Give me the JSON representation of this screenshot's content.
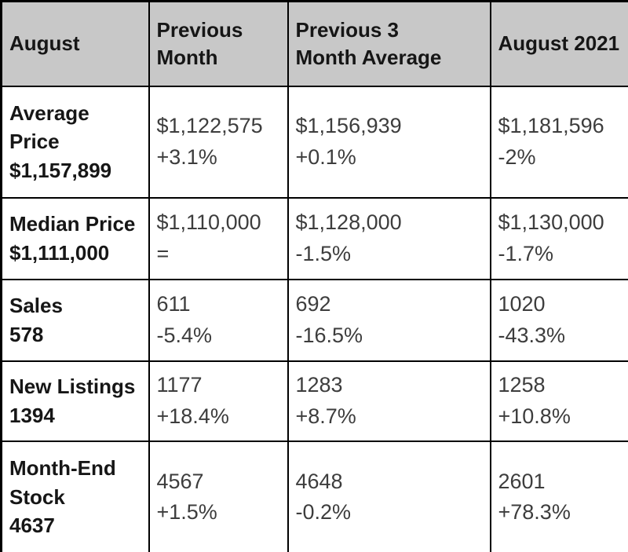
{
  "colors": {
    "header_bg": "#c8c8c8",
    "border": "#000000",
    "label_text": "#161616",
    "value_text": "#3d3d3d"
  },
  "table": {
    "corner_label": "August",
    "column_headers": [
      "Previous\nMonth",
      "Previous 3\nMonth Average",
      "August 2021"
    ],
    "rows": [
      {
        "label": "Average\nPrice",
        "current": "$1,157,899",
        "cells": [
          {
            "value": "$1,122,575",
            "change": "+3.1%"
          },
          {
            "value": "$1,156,939",
            "change": "+0.1%"
          },
          {
            "value": "$1,181,596",
            "change": "-2%"
          }
        ]
      },
      {
        "label": "Median Price",
        "current": "$1,111,000",
        "cells": [
          {
            "value": "$1,110,000",
            "change": "="
          },
          {
            "value": "$1,128,000",
            "change": "-1.5%"
          },
          {
            "value": "$1,130,000",
            "change": "-1.7%"
          }
        ]
      },
      {
        "label": "Sales",
        "current": "578",
        "cells": [
          {
            "value": "611",
            "change": "-5.4%"
          },
          {
            "value": "692",
            "change": "-16.5%"
          },
          {
            "value": "1020",
            "change": "-43.3%"
          }
        ]
      },
      {
        "label": "New Listings",
        "current": "1394",
        "cells": [
          {
            "value": "1177",
            "change": "+18.4%"
          },
          {
            "value": "1283",
            "change": "+8.7%"
          },
          {
            "value": "1258",
            "change": "+10.8%"
          }
        ]
      },
      {
        "label": "Month-End\nStock",
        "current": "4637",
        "cells": [
          {
            "value": "4567",
            "change": "+1.5%"
          },
          {
            "value": "4648",
            "change": "-0.2%"
          },
          {
            "value": "2601",
            "change": "+78.3%"
          }
        ]
      }
    ]
  }
}
